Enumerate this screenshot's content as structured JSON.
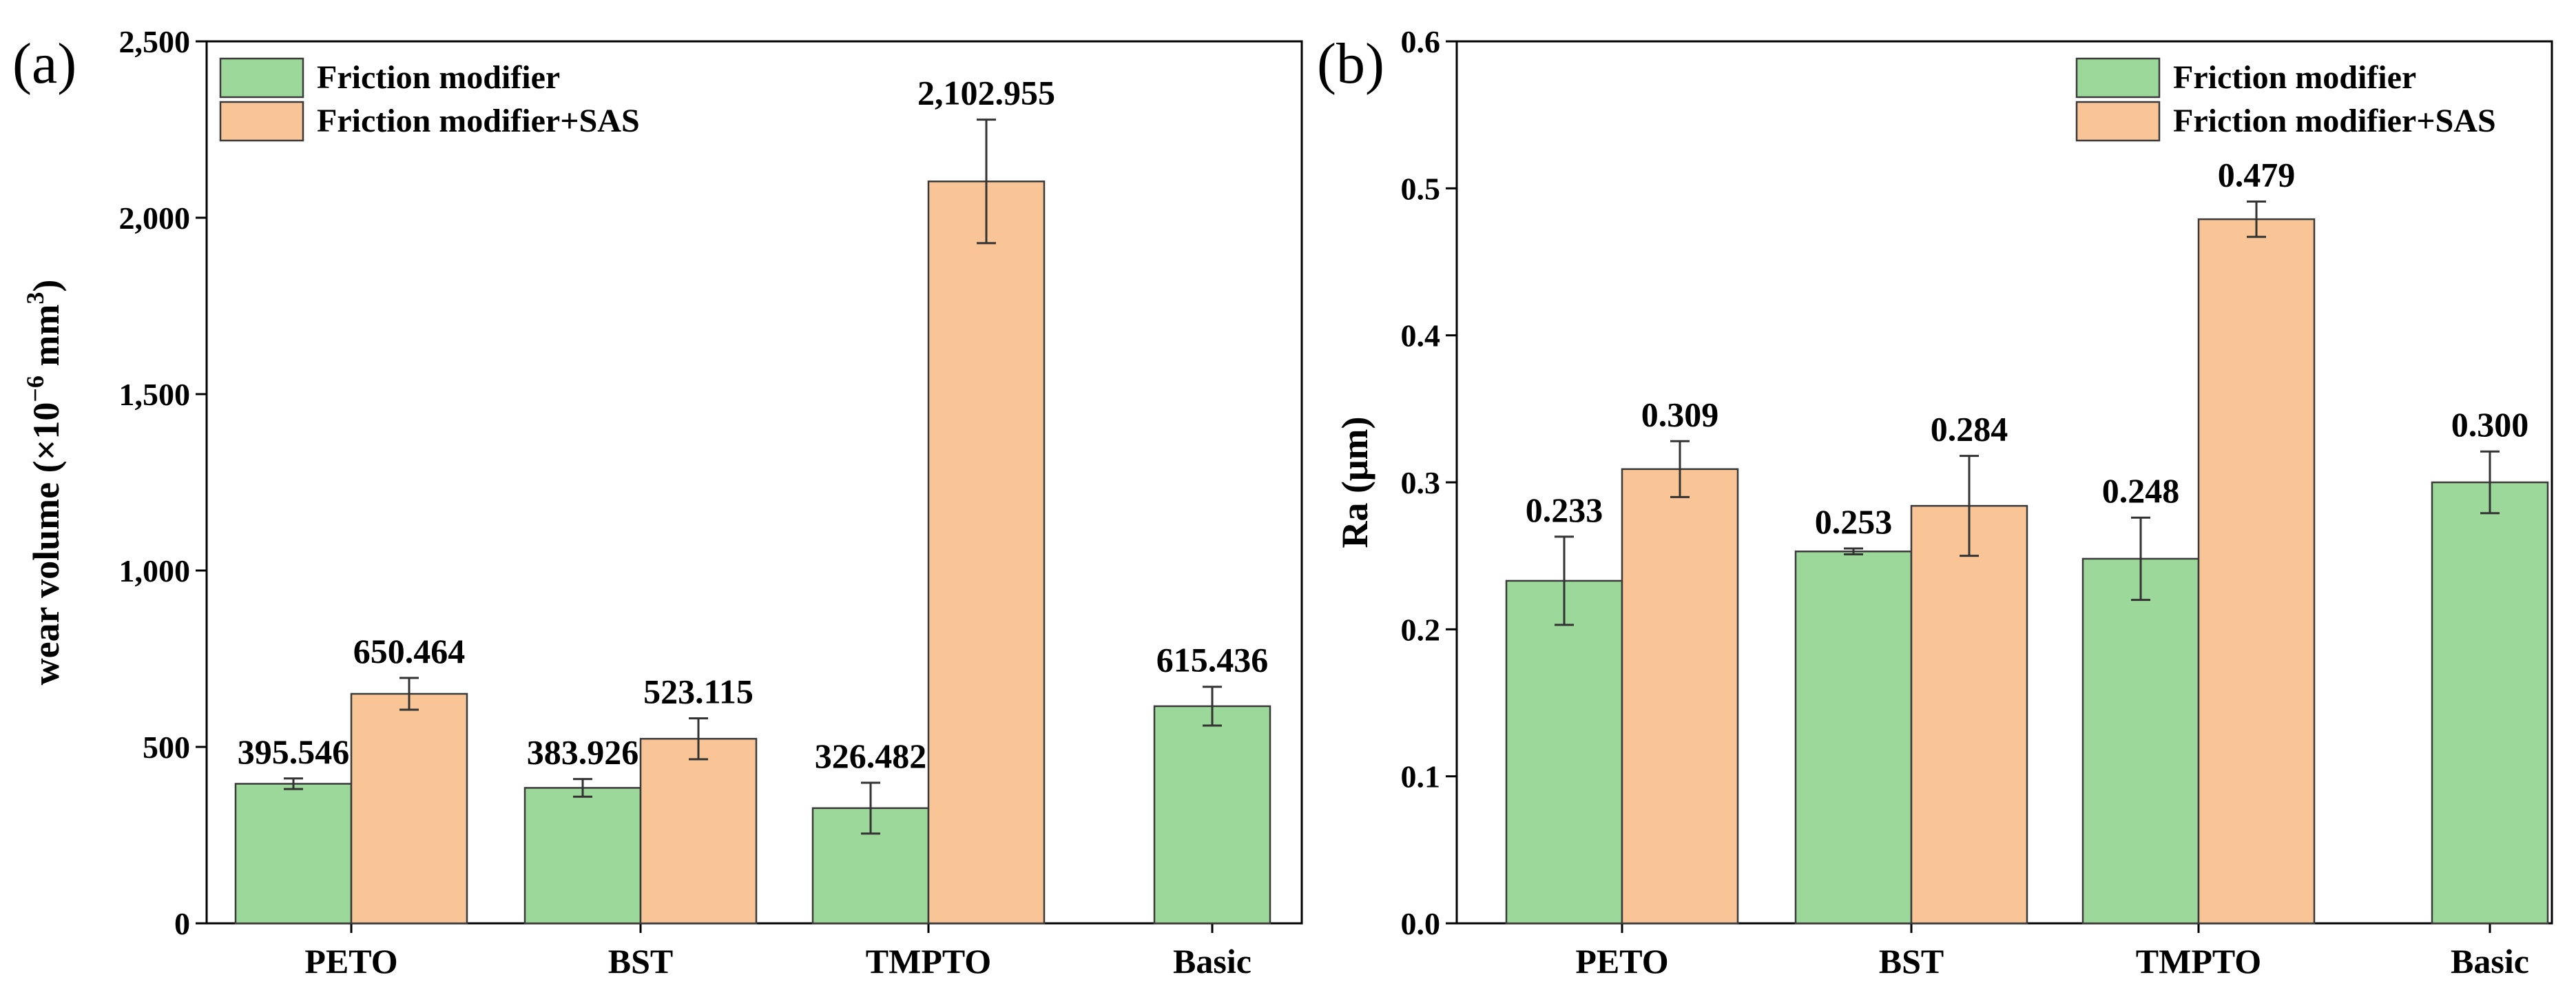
{
  "chart_data": [
    {
      "type": "bar",
      "panel_label": "(a)",
      "categories": [
        "PETO",
        "BST",
        "TMPTO",
        "Basic"
      ],
      "series": [
        {
          "name": "Friction modifier",
          "color": "#9dd89b",
          "values": [
            395.546,
            383.926,
            326.482,
            615.436
          ],
          "errors": [
            15,
            25,
            72,
            55
          ],
          "labels": [
            "395.546",
            "383.926",
            "326.482",
            "615.436"
          ]
        },
        {
          "name": "Friction modifier+SAS",
          "color": "#f9c596",
          "values": [
            650.464,
            523.115,
            2102.955,
            null
          ],
          "errors": [
            45,
            58,
            175,
            null
          ],
          "labels": [
            "650.464",
            "523.115",
            "2,102.955",
            null
          ]
        }
      ],
      "ylabel": "wear volume (×10",
      "ylabel_exp1": "−6",
      "ylabel_mid": " mm",
      "ylabel_exp2": "3",
      "ylabel_end": ")",
      "ylim": [
        0,
        2500
      ],
      "yticks": [
        0,
        500,
        1000,
        1500,
        2000,
        2500
      ],
      "yticklabels": [
        "0",
        "500",
        "1,000",
        "1,500",
        "2,000",
        "2,500"
      ]
    },
    {
      "type": "bar",
      "panel_label": "(b)",
      "categories": [
        "PETO",
        "BST",
        "TMPTO",
        "Basic"
      ],
      "series": [
        {
          "name": "Friction modifier",
          "color": "#9dd89b",
          "values": [
            0.233,
            0.253,
            0.248,
            0.3
          ],
          "errors": [
            0.03,
            0.002,
            0.028,
            0.021
          ],
          "labels": [
            "0.233",
            "0.253",
            "0.248",
            "0.300"
          ]
        },
        {
          "name": "Friction modifier+SAS",
          "color": "#f9c596",
          "values": [
            0.309,
            0.284,
            0.479,
            null
          ],
          "errors": [
            0.019,
            0.034,
            0.012,
            null
          ],
          "labels": [
            "0.309",
            "0.284",
            "0.479",
            null
          ]
        }
      ],
      "ylabel": "Ra (μm)",
      "ylim": [
        0,
        0.6
      ],
      "yticks": [
        0,
        0.1,
        0.2,
        0.3,
        0.4,
        0.5,
        0.6
      ],
      "yticklabels": [
        "0.0",
        "0.1",
        "0.2",
        "0.3",
        "0.4",
        "0.5",
        "0.6"
      ]
    }
  ]
}
